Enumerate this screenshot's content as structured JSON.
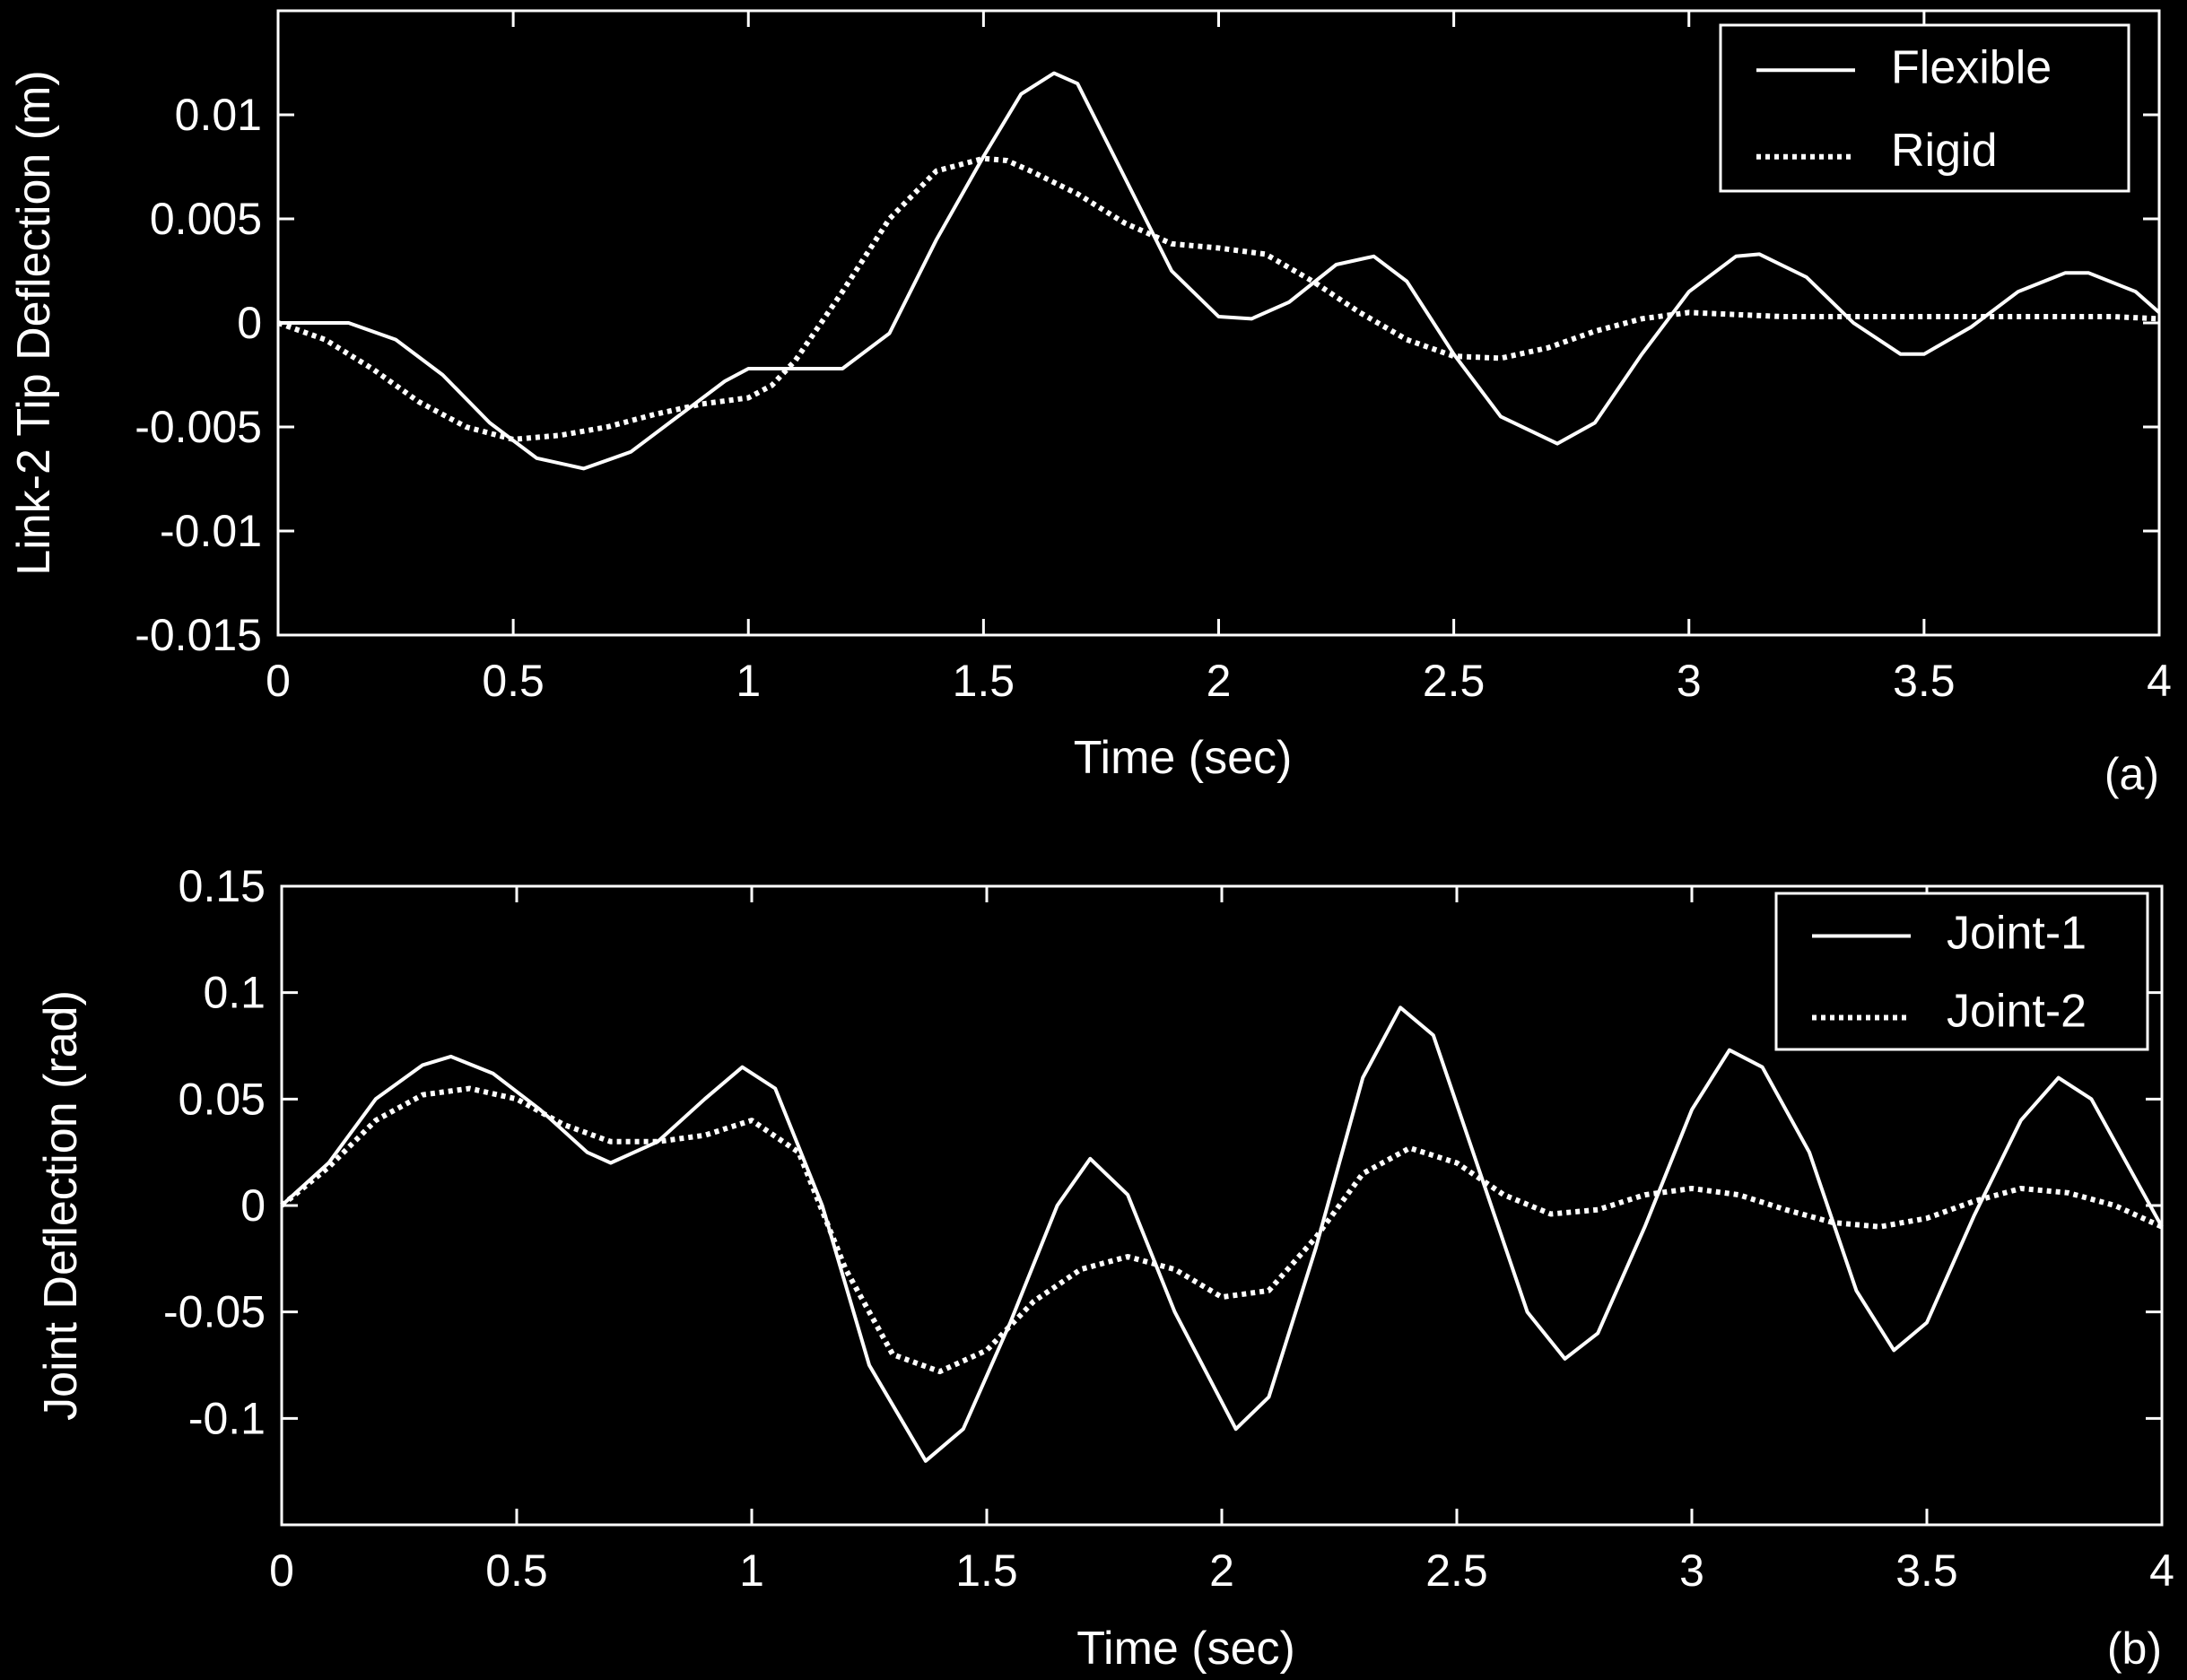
{
  "chart_data": [
    {
      "type": "line",
      "panel_label": "(a)",
      "xlabel": "Time (sec)",
      "ylabel": "Link-2 Tip Deflection (m)",
      "xlim": [
        0,
        4
      ],
      "ylim": [
        -0.015,
        0.015
      ],
      "x_ticks": [
        0,
        0.5,
        1,
        1.5,
        2,
        2.5,
        3,
        3.5,
        4
      ],
      "x_tick_labels": [
        "0",
        "0.5",
        "1",
        "1.5",
        "2",
        "2.5",
        "3",
        "3.5",
        "4"
      ],
      "y_ticks": [
        -0.015,
        -0.01,
        -0.005,
        0,
        0.005,
        0.01
      ],
      "y_tick_labels": [
        "-0.015",
        "-0.01",
        "-0.005",
        "0",
        "0.005",
        "0.01"
      ],
      "grid": false,
      "legend_position": "top-right",
      "series": [
        {
          "name": "Flexible",
          "style": "solid",
          "x": [
            0,
            0.15,
            0.25,
            0.35,
            0.45,
            0.55,
            0.65,
            0.75,
            0.85,
            0.95,
            1.0,
            1.1,
            1.2,
            1.3,
            1.4,
            1.5,
            1.58,
            1.65,
            1.7,
            1.8,
            1.9,
            2.0,
            2.07,
            2.15,
            2.25,
            2.33,
            2.4,
            2.5,
            2.6,
            2.72,
            2.8,
            2.9,
            3.0,
            3.1,
            3.15,
            3.25,
            3.35,
            3.45,
            3.5,
            3.6,
            3.7,
            3.8,
            3.85,
            3.95,
            4.0
          ],
          "y": [
            0,
            0,
            -0.0008,
            -0.0025,
            -0.0048,
            -0.0065,
            -0.007,
            -0.0062,
            -0.0045,
            -0.0028,
            -0.0022,
            -0.0022,
            -0.0022,
            -0.0005,
            0.004,
            0.008,
            0.011,
            0.012,
            0.0115,
            0.007,
            0.0025,
            0.0003,
            0.0002,
            0.001,
            0.0028,
            0.0032,
            0.002,
            -0.0015,
            -0.0045,
            -0.0058,
            -0.0048,
            -0.0015,
            0.0015,
            0.0032,
            0.0033,
            0.0022,
            0.0,
            -0.0015,
            -0.0015,
            -0.0002,
            0.0015,
            0.0024,
            0.0024,
            0.0015,
            0.0005
          ]
        },
        {
          "name": "Rigid",
          "style": "dotted",
          "x": [
            0,
            0.1,
            0.2,
            0.3,
            0.4,
            0.5,
            0.6,
            0.7,
            0.8,
            0.9,
            1.0,
            1.05,
            1.1,
            1.2,
            1.3,
            1.4,
            1.5,
            1.55,
            1.6,
            1.7,
            1.8,
            1.9,
            2.0,
            2.1,
            2.2,
            2.3,
            2.4,
            2.5,
            2.6,
            2.7,
            2.8,
            2.9,
            3.0,
            3.1,
            3.2,
            3.3,
            3.4,
            3.5,
            3.6,
            3.7,
            3.8,
            3.9,
            4.0
          ],
          "y": [
            0,
            -0.0008,
            -0.0022,
            -0.0038,
            -0.005,
            -0.0056,
            -0.0054,
            -0.005,
            -0.0044,
            -0.0039,
            -0.0036,
            -0.003,
            -0.0018,
            0.0015,
            0.005,
            0.0073,
            0.0079,
            0.0078,
            0.0073,
            0.0062,
            0.0048,
            0.0038,
            0.0036,
            0.0033,
            0.002,
            0.0005,
            -0.0008,
            -0.0016,
            -0.0017,
            -0.0012,
            -0.0004,
            0.0002,
            0.0005,
            0.0004,
            0.0003,
            0.0003,
            0.0003,
            0.0003,
            0.0003,
            0.0003,
            0.0003,
            0.0003,
            0.0002
          ]
        }
      ]
    },
    {
      "type": "line",
      "panel_label": "(b)",
      "xlabel": "Time (sec)",
      "ylabel": "Joint Deflection (rad)",
      "xlim": [
        0,
        4
      ],
      "ylim": [
        -0.15,
        0.15
      ],
      "x_ticks": [
        0,
        0.5,
        1,
        1.5,
        2,
        2.5,
        3,
        3.5,
        4
      ],
      "x_tick_labels": [
        "0",
        "0.5",
        "1",
        "1.5",
        "2",
        "2.5",
        "3",
        "3.5",
        "4"
      ],
      "y_ticks": [
        -0.1,
        -0.05,
        0,
        0.05,
        0.1,
        0.15
      ],
      "y_tick_labels": [
        "-0.1",
        "-0.05",
        "0",
        "0.05",
        "0.1",
        "0.15"
      ],
      "grid": false,
      "legend_position": "top-right",
      "series": [
        {
          "name": "Joint-1",
          "style": "solid",
          "x": [
            0,
            0.1,
            0.2,
            0.3,
            0.36,
            0.45,
            0.55,
            0.65,
            0.7,
            0.8,
            0.9,
            0.98,
            1.05,
            1.15,
            1.25,
            1.37,
            1.45,
            1.55,
            1.65,
            1.72,
            1.8,
            1.9,
            2.03,
            2.1,
            2.2,
            2.3,
            2.38,
            2.45,
            2.55,
            2.65,
            2.73,
            2.8,
            2.9,
            3.0,
            3.08,
            3.15,
            3.25,
            3.35,
            3.43,
            3.5,
            3.6,
            3.7,
            3.78,
            3.85,
            3.95,
            4.0
          ],
          "y": [
            0,
            0.02,
            0.05,
            0.066,
            0.07,
            0.062,
            0.045,
            0.025,
            0.02,
            0.03,
            0.05,
            0.065,
            0.055,
            0.0,
            -0.075,
            -0.12,
            -0.105,
            -0.055,
            0.0,
            0.022,
            0.005,
            -0.05,
            -0.105,
            -0.09,
            -0.02,
            0.06,
            0.093,
            0.08,
            0.015,
            -0.05,
            -0.072,
            -0.06,
            -0.01,
            0.045,
            0.073,
            0.065,
            0.025,
            -0.04,
            -0.068,
            -0.055,
            -0.005,
            0.04,
            0.06,
            0.05,
            0.01,
            -0.01
          ]
        },
        {
          "name": "Joint-2",
          "style": "dotted",
          "x": [
            0,
            0.1,
            0.2,
            0.3,
            0.4,
            0.5,
            0.6,
            0.7,
            0.8,
            0.9,
            1.0,
            1.1,
            1.2,
            1.3,
            1.4,
            1.5,
            1.6,
            1.7,
            1.8,
            1.9,
            2.0,
            2.1,
            2.2,
            2.3,
            2.4,
            2.5,
            2.6,
            2.7,
            2.8,
            2.9,
            3.0,
            3.1,
            3.2,
            3.3,
            3.4,
            3.5,
            3.6,
            3.7,
            3.8,
            3.9,
            4.0
          ],
          "y": [
            0,
            0.018,
            0.04,
            0.052,
            0.055,
            0.05,
            0.038,
            0.03,
            0.03,
            0.033,
            0.04,
            0.025,
            -0.03,
            -0.07,
            -0.078,
            -0.068,
            -0.045,
            -0.03,
            -0.024,
            -0.03,
            -0.043,
            -0.04,
            -0.015,
            0.015,
            0.027,
            0.02,
            0.005,
            -0.004,
            -0.002,
            0.005,
            0.008,
            0.005,
            -0.002,
            -0.008,
            -0.01,
            -0.006,
            0.002,
            0.008,
            0.006,
            0.0,
            -0.01
          ]
        }
      ]
    }
  ]
}
